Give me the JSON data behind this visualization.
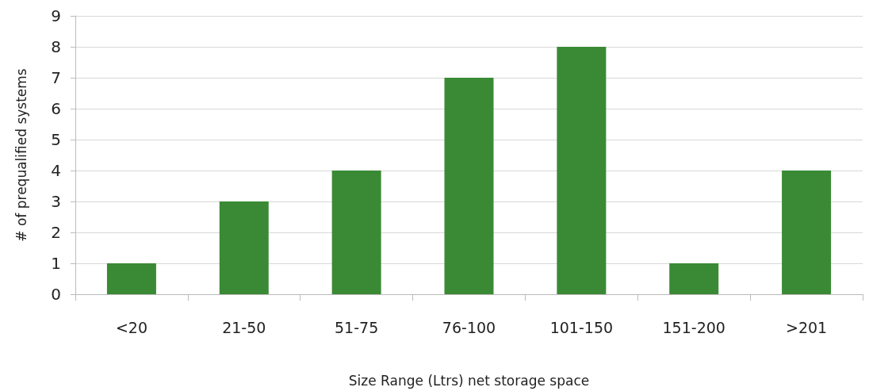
{
  "chart_data": {
    "type": "bar",
    "xlabel": "Size Range (Ltrs) net storage space",
    "ylabel": "# of prequalified systems",
    "categories": [
      "<20",
      "21-50",
      "51-75",
      "76-100",
      "101-150",
      "151-200",
      ">201"
    ],
    "values": [
      1,
      3,
      4,
      7,
      8,
      1,
      4
    ],
    "color": "#3a8a35",
    "ylim": [
      0,
      9
    ],
    "yticks": [
      0,
      1,
      2,
      3,
      4,
      5,
      6,
      7,
      8,
      9
    ],
    "grid": "y"
  }
}
